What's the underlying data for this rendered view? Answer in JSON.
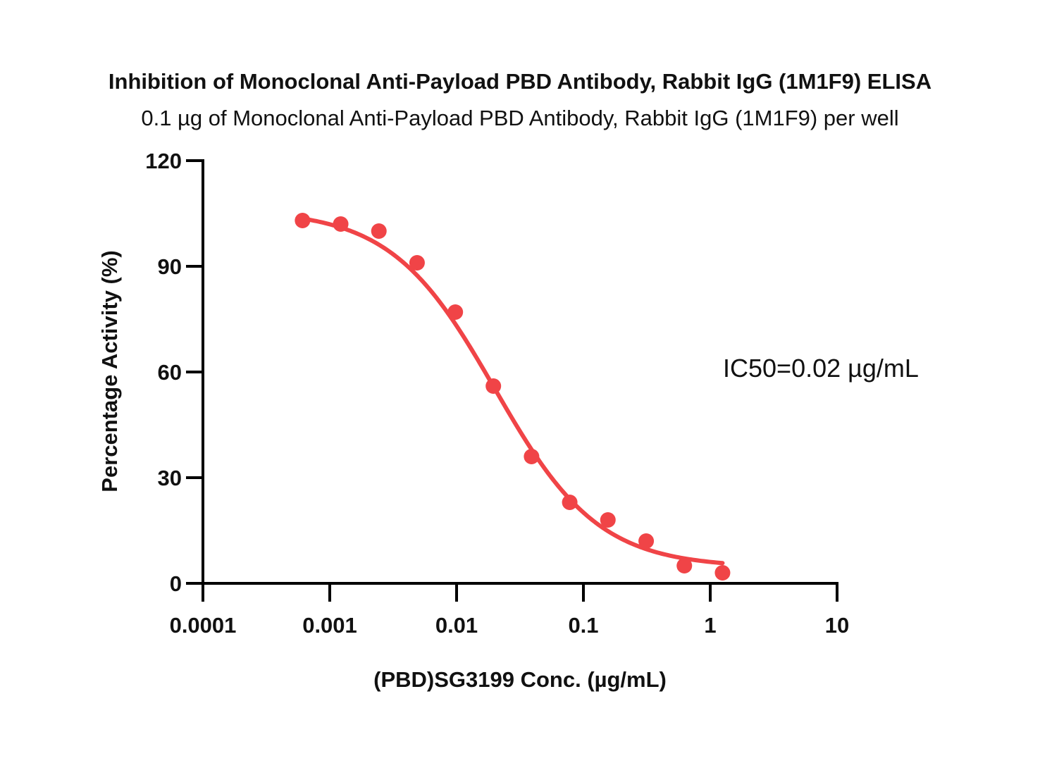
{
  "chart_data": {
    "type": "scatter",
    "title": "Inhibition of Monoclonal Anti-Payload PBD Antibody, Rabbit IgG (1M1F9) ELISA",
    "subtitle": "0.1 µg of Monoclonal Anti-Payload PBD Antibody, Rabbit IgG (1M1F9) per well",
    "xlabel": "(PBD)SG3199 Conc. (µg/mL)",
    "ylabel": "Percentage Activity (%)",
    "x_scale": "log",
    "xlim": [
      0.0001,
      10
    ],
    "ylim": [
      0,
      120
    ],
    "x_ticks": [
      0.0001,
      0.001,
      0.01,
      0.1,
      1,
      10
    ],
    "x_tick_labels": [
      "0.0001",
      "0.001",
      "0.01",
      "0.1",
      "1",
      "10"
    ],
    "y_ticks": [
      0,
      30,
      60,
      90,
      120
    ],
    "y_tick_labels": [
      "0",
      "30",
      "60",
      "90",
      "120"
    ],
    "grid": false,
    "series": [
      {
        "color": "#f04447",
        "x": [
          0.00061,
          0.00122,
          0.00244,
          0.00488,
          0.00977,
          0.0195,
          0.039,
          0.078,
          0.156,
          0.3125,
          0.625,
          1.25
        ],
        "y": [
          103,
          102,
          100,
          91,
          77,
          56,
          36,
          23,
          18,
          12,
          5,
          3
        ]
      }
    ],
    "fit": {
      "model": "4PL",
      "top": 106,
      "bottom": 4.5,
      "ic50": 0.02,
      "hill": 1.06,
      "x_range": [
        0.0006,
        1.25
      ],
      "color": "#f04447"
    },
    "annotations": [
      {
        "text": "IC50=0.02 µg/mL"
      }
    ]
  }
}
